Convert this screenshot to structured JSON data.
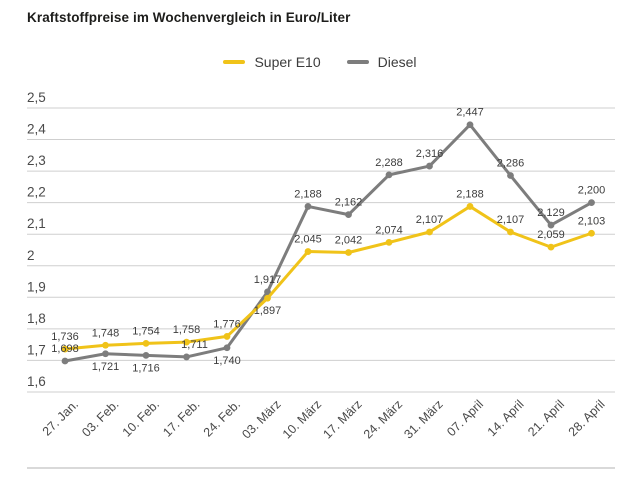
{
  "chart_data": {
    "type": "line",
    "title": "Kraftstoffpreise im Wochenvergleich in Euro/Liter",
    "categories": [
      "27. Jan.",
      "03. Feb.",
      "10. Feb.",
      "17. Feb.",
      "24. Feb.",
      "03. März",
      "10. März",
      "17. März",
      "24. März",
      "31. März",
      "07. April",
      "14. April",
      "21. April",
      "28. April"
    ],
    "series": [
      {
        "name": "Super E10",
        "color": "#f0c319",
        "values": [
          1.736,
          1.748,
          1.754,
          1.758,
          1.776,
          1.897,
          2.045,
          2.042,
          2.074,
          2.107,
          2.188,
          2.107,
          2.059,
          2.103
        ],
        "labels": [
          "1,736",
          "1,748",
          "1,754",
          "1,758",
          "1,776",
          "1,897",
          "2,045",
          "2,042",
          "2,074",
          "2,107",
          "2,188",
          "2,107",
          "2,059",
          "2,103"
        ],
        "label_below_indices": [
          5
        ]
      },
      {
        "name": "Diesel",
        "color": "#7d7d7d",
        "values": [
          1.698,
          1.721,
          1.716,
          1.711,
          1.74,
          1.917,
          2.188,
          2.162,
          2.288,
          2.316,
          2.447,
          2.286,
          2.129,
          2.2
        ],
        "labels": [
          "1,698",
          "1,721",
          "1,716",
          "1,711",
          "1,740",
          "1,917",
          "2,188",
          "2,162",
          "2,288",
          "2,316",
          "2,447",
          "2,286",
          "2,129",
          "2,200"
        ],
        "label_below_indices": [
          1,
          2,
          4
        ],
        "label_dx": {
          "3": 8
        }
      }
    ],
    "ylim": [
      1.6,
      2.5
    ],
    "ytick_step": 0.1,
    "ytick_values": [
      2.5,
      2.4,
      2.3,
      2.2,
      2.1,
      2.0,
      1.9,
      1.8,
      1.7,
      1.6
    ],
    "ytick_labels": [
      "2,5",
      "2,4",
      "2,3",
      "2,2",
      "2,1",
      "2",
      "1,9",
      "1,8",
      "1,7",
      "1,6"
    ],
    "grid": true,
    "legend_position": "top-center",
    "xlabel": "",
    "ylabel": ""
  },
  "colors": {
    "grid": "#cfcfcf",
    "axis_text": "#4a4a4a",
    "data_label_text": "#3d3d3d",
    "baseline": "#d9d9d9",
    "title_text": "#1d1d1b"
  }
}
